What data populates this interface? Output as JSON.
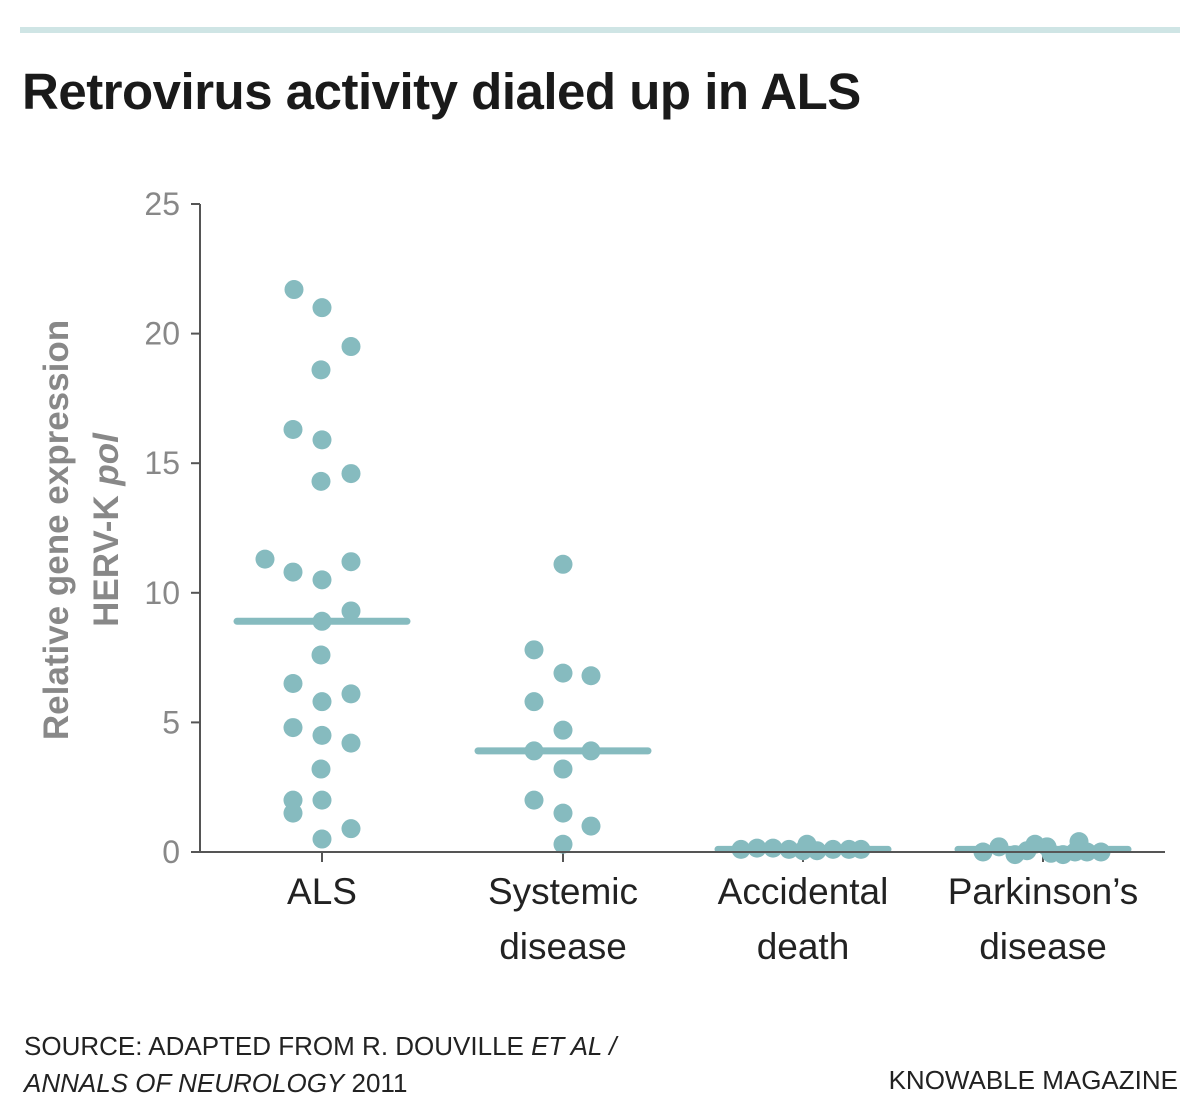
{
  "title": "Retrovirus activity dialed up in ALS",
  "source": {
    "line1_prefix": "SOURCE: ADAPTED FROM R. DOUVILLE ",
    "line1_italic": "ET AL /",
    "line2_italic": "ANNALS OF NEUROLOGY",
    "line2_suffix": " 2011"
  },
  "credit": "KNOWABLE MAGAZINE",
  "colors": {
    "points": "#86bbbf",
    "topbar": "#cfe5e5",
    "axis": "#555555",
    "axis_text": "#888888"
  },
  "chart_data": {
    "type": "scatter",
    "subtype": "dot-strip with median lines",
    "ylabel_line1": "Relative gene expression",
    "ylabel_line2_prefix": "HERV-K ",
    "ylabel_line2_italic": "pol",
    "ylim": [
      0,
      25
    ],
    "yticks": [
      "0",
      "5",
      "10",
      "15",
      "20",
      "25"
    ],
    "grid": false,
    "categories": [
      {
        "label1": "ALS",
        "label2": "",
        "median": 8.9,
        "values": [
          21.7,
          21.0,
          19.5,
          18.6,
          16.3,
          15.9,
          14.6,
          14.3,
          11.3,
          11.2,
          10.8,
          10.5,
          9.3,
          8.9,
          7.6,
          6.5,
          6.1,
          5.8,
          4.8,
          4.5,
          4.2,
          3.2,
          2.0,
          2.0,
          1.5,
          0.9,
          0.5
        ]
      },
      {
        "label1": "Systemic",
        "label2": "disease",
        "median": 3.9,
        "values": [
          11.1,
          7.8,
          6.9,
          6.8,
          5.8,
          4.7,
          3.9,
          3.9,
          3.2,
          2.0,
          1.5,
          1.0,
          0.3
        ]
      },
      {
        "label1": "Accidental",
        "label2": "death",
        "median": 0.1,
        "values": [
          0.1,
          0.15,
          0.15,
          0.1,
          0.3,
          0.05,
          0.1,
          0.1,
          0.1,
          0.05
        ]
      },
      {
        "label1": "Parkinson’s",
        "label2": "disease",
        "median": 0.1,
        "values": [
          0.0,
          0.2,
          -0.1,
          0.05,
          0.3,
          0.2,
          -0.05,
          -0.1,
          0.0,
          0.4,
          0.0,
          0.0
        ]
      }
    ]
  }
}
